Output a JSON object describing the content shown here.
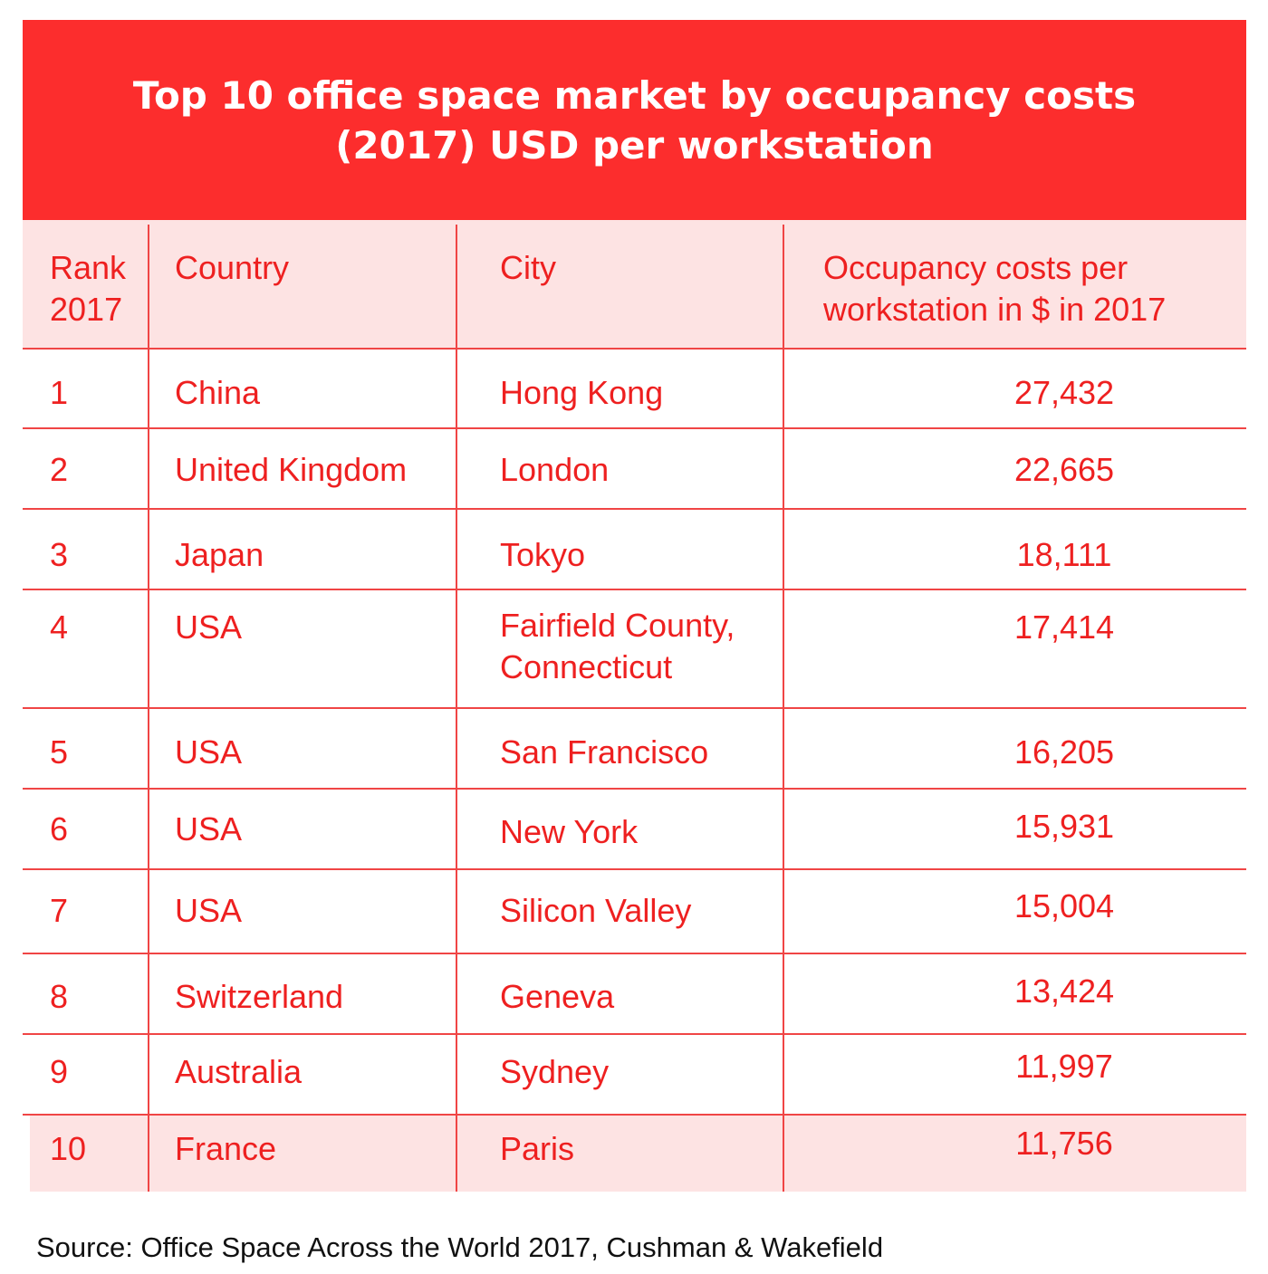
{
  "chart_data": {
    "type": "table",
    "title_lines": [
      "Top 10 office space market by occupancy costs",
      "(2017) USD per workstation"
    ],
    "columns": [
      [
        "Rank",
        "2017"
      ],
      [
        "Country"
      ],
      [
        "City"
      ],
      [
        "Occupancy costs per",
        "workstation in $ in 2017"
      ]
    ],
    "rows": [
      {
        "rank": "1",
        "country": "China",
        "city": [
          "Hong Kong"
        ],
        "cost": "27,432"
      },
      {
        "rank": "2",
        "country": "United Kingdom",
        "city": [
          "London"
        ],
        "cost": "22,665"
      },
      {
        "rank": "3",
        "country": "Japan",
        "city": [
          "Tokyo"
        ],
        "cost": "18,111"
      },
      {
        "rank": "4",
        "country": "USA",
        "city": [
          "Fairfield County,",
          "Connecticut"
        ],
        "cost": "17,414"
      },
      {
        "rank": "5",
        "country": "USA",
        "city": [
          "San Francisco"
        ],
        "cost": "16,205"
      },
      {
        "rank": "6",
        "country": "USA",
        "city": [
          "New York"
        ],
        "cost": "15,931"
      },
      {
        "rank": "7",
        "country": "USA",
        "city": [
          "Silicon Valley"
        ],
        "cost": "15,004"
      },
      {
        "rank": "8",
        "country": "Switzerland",
        "city": [
          "Geneva"
        ],
        "cost": "13,424"
      },
      {
        "rank": "9",
        "country": "Australia",
        "city": [
          "Sydney"
        ],
        "cost": "11,997"
      },
      {
        "rank": "10",
        "country": "France",
        "city": [
          "Paris"
        ],
        "cost": "11,756"
      }
    ],
    "values": [
      27432,
      22665,
      18111,
      17414,
      16205,
      15931,
      15004,
      13424,
      11997,
      11756
    ]
  },
  "source": "Source: Office Space Across the World 2017, Cushman & Wakefield",
  "colors": {
    "banner": "#fc2d2d",
    "text": "#ee2020",
    "rule": "#f04545",
    "tint": "#fde3e3"
  }
}
